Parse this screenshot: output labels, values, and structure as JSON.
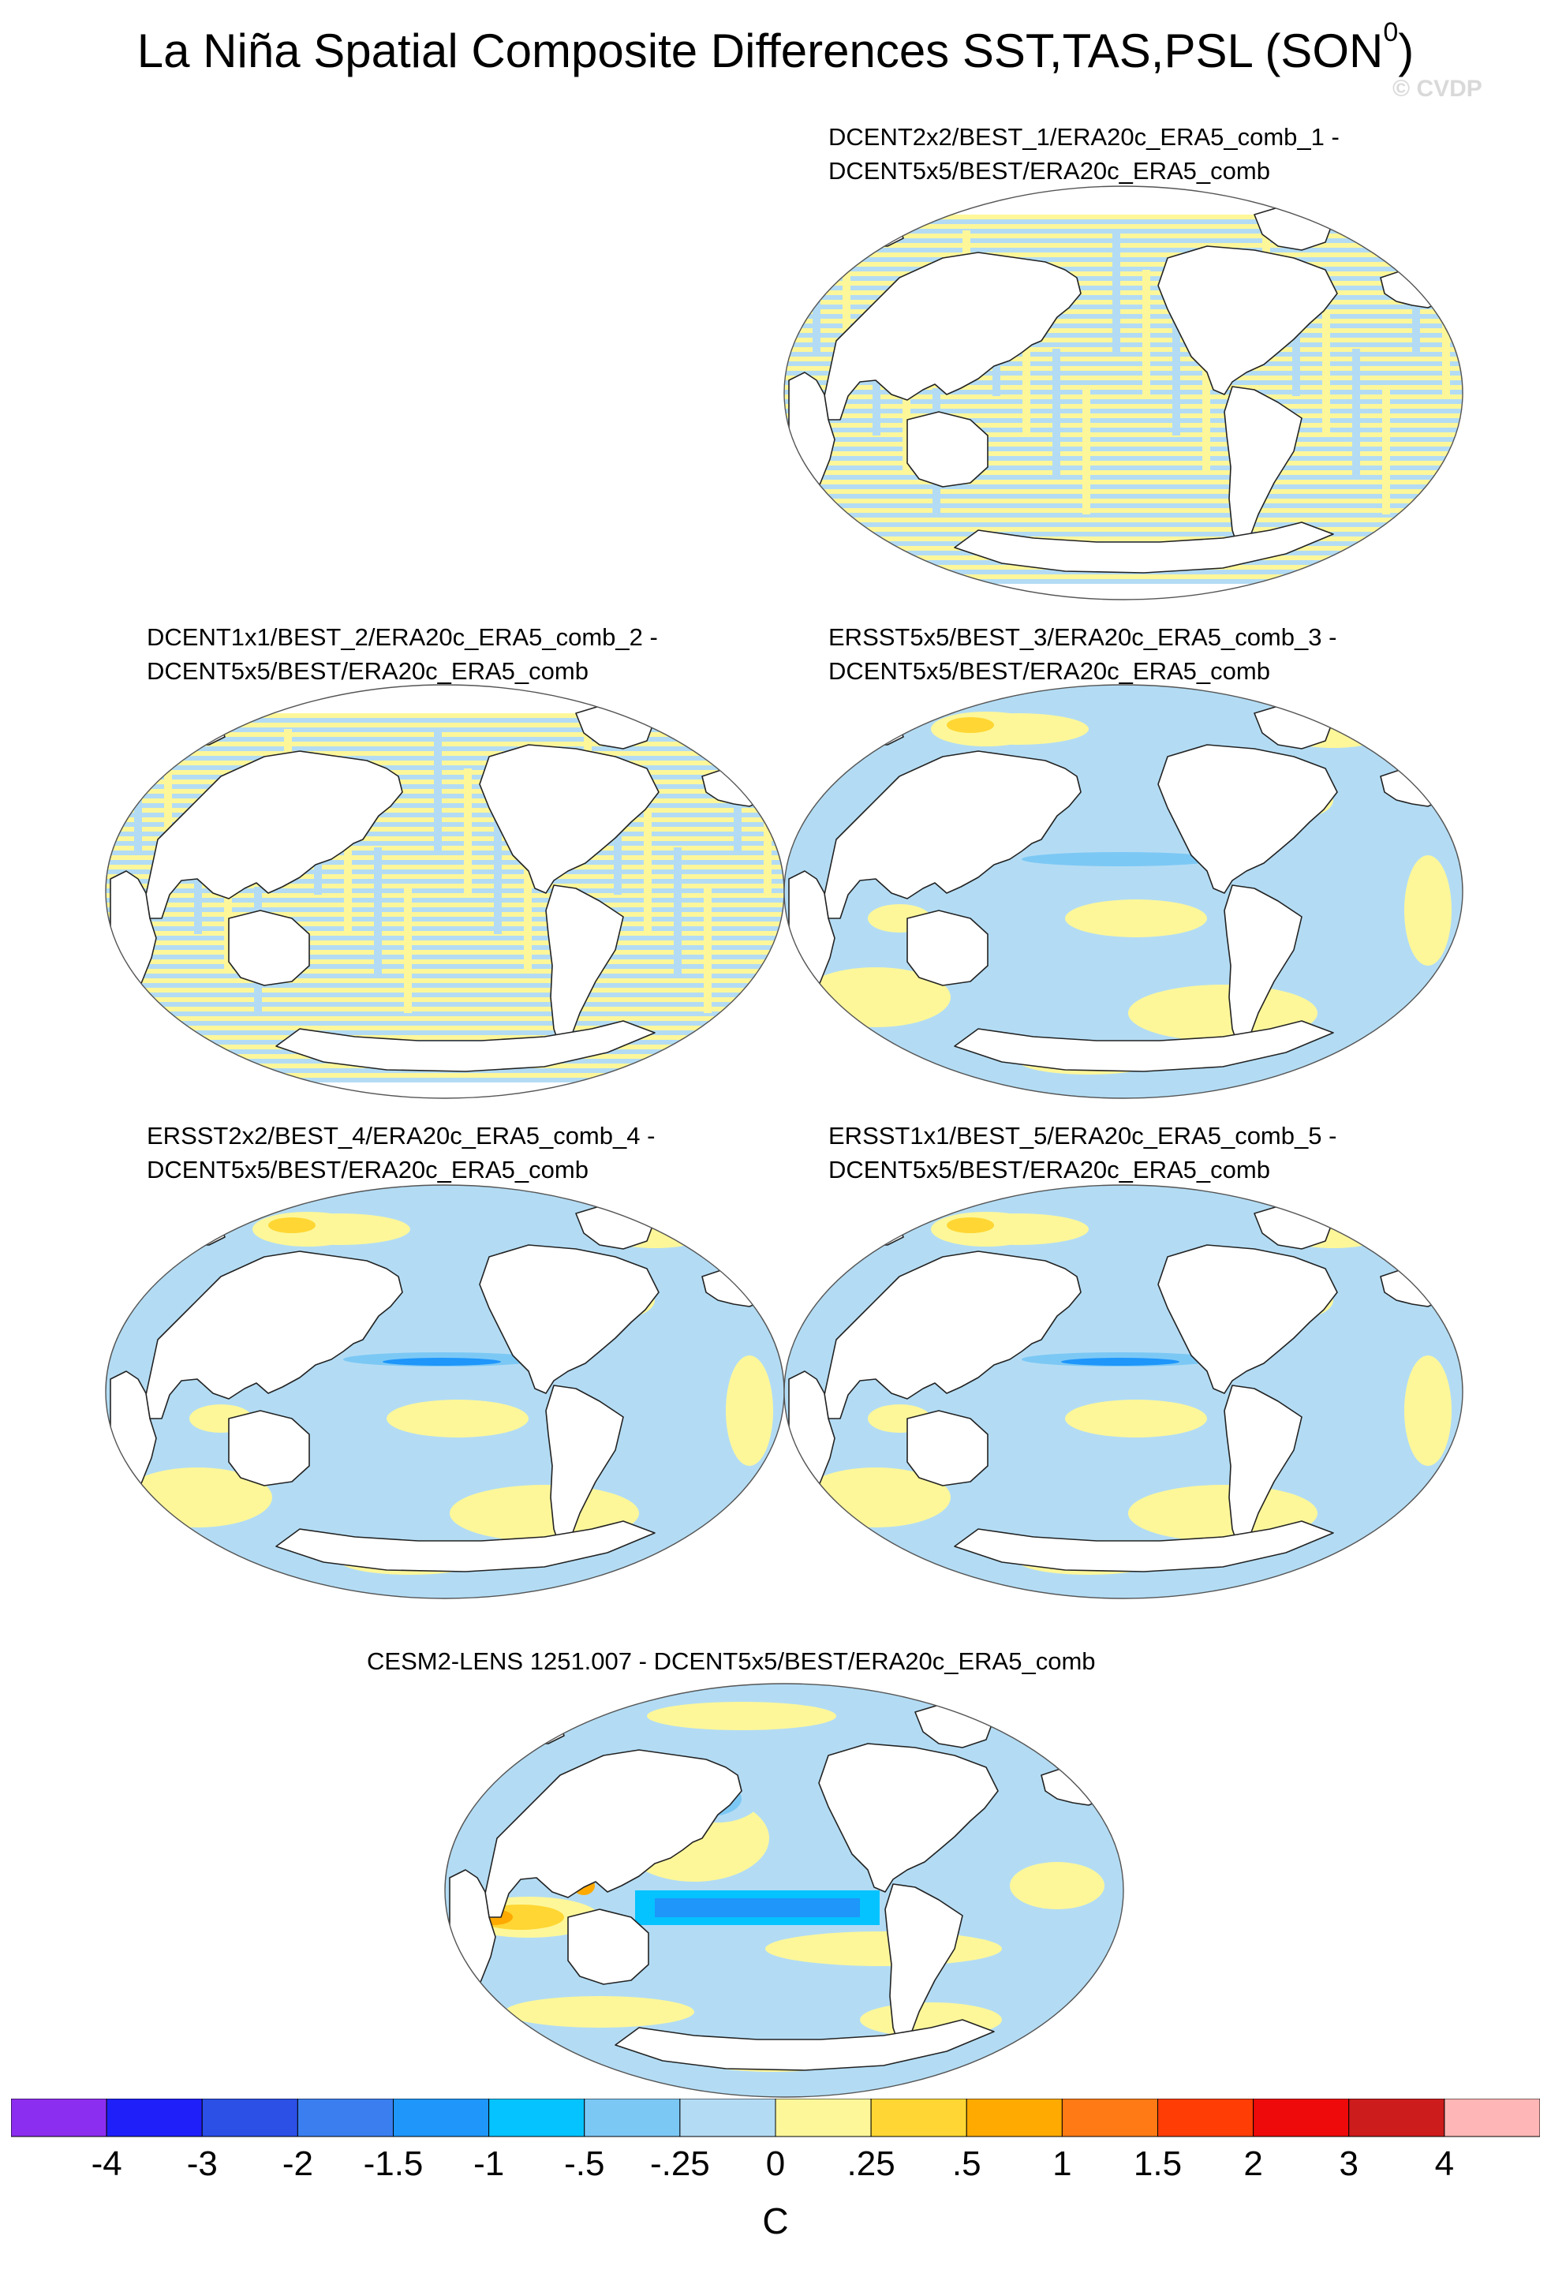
{
  "title": {
    "main": "La Niña Spatial Composite Differences SST,TAS,PSL (SON",
    "superscript": "0",
    "close": ")"
  },
  "watermark": "© CVDP",
  "panels": [
    {
      "line1": "DCENT2x2/BEST_1/ERA20c_ERA5_comb_1 -",
      "line2": "DCENT5x5/BEST/ERA20c_ERA5_comb",
      "pattern": "striped"
    },
    {
      "line1": "DCENT1x1/BEST_2/ERA20c_ERA5_comb_2 -",
      "line2": "DCENT5x5/BEST/ERA20c_ERA5_comb",
      "pattern": "striped"
    },
    {
      "line1": "ERSST5x5/BEST_3/ERA20c_ERA5_comb_3 -",
      "line2": "DCENT5x5/BEST/ERA20c_ERA5_comb",
      "pattern": "smooth"
    },
    {
      "line1": "ERSST2x2/BEST_4/ERA20c_ERA5_comb_4 -",
      "line2": "DCENT5x5/BEST/ERA20c_ERA5_comb",
      "pattern": "smooth"
    },
    {
      "line1": "ERSST1x1/BEST_5/ERA20c_ERA5_comb_5 -",
      "line2": "DCENT5x5/BEST/ERA20c_ERA5_comb",
      "pattern": "smooth"
    },
    {
      "line1": "CESM2-LENS 1251.007 - DCENT5x5/BEST/ERA20c_ERA5_comb",
      "line2": "",
      "pattern": "model"
    }
  ],
  "chart_data": {
    "type": "heatmap",
    "variable": "SST,TAS,PSL composite difference",
    "season": "SON0",
    "units": "C",
    "colorbar": {
      "levels": [
        "-4",
        "-3",
        "-2",
        "-1.5",
        "-1",
        "-.5",
        "-.25",
        "0",
        ".25",
        ".5",
        "1",
        "1.5",
        "2",
        "3",
        "4"
      ],
      "colors": [
        "#8c2ef0",
        "#1f1ffa",
        "#2c4fe6",
        "#3a7ef0",
        "#1e96fa",
        "#05c3ff",
        "#7cc8f5",
        "#b3dcf4",
        "#fdf79a",
        "#ffd633",
        "#ffaa00",
        "#ff7a14",
        "#ff3d05",
        "#ee0a0a",
        "#cc1c1c",
        "#ffb6b6"
      ]
    }
  }
}
